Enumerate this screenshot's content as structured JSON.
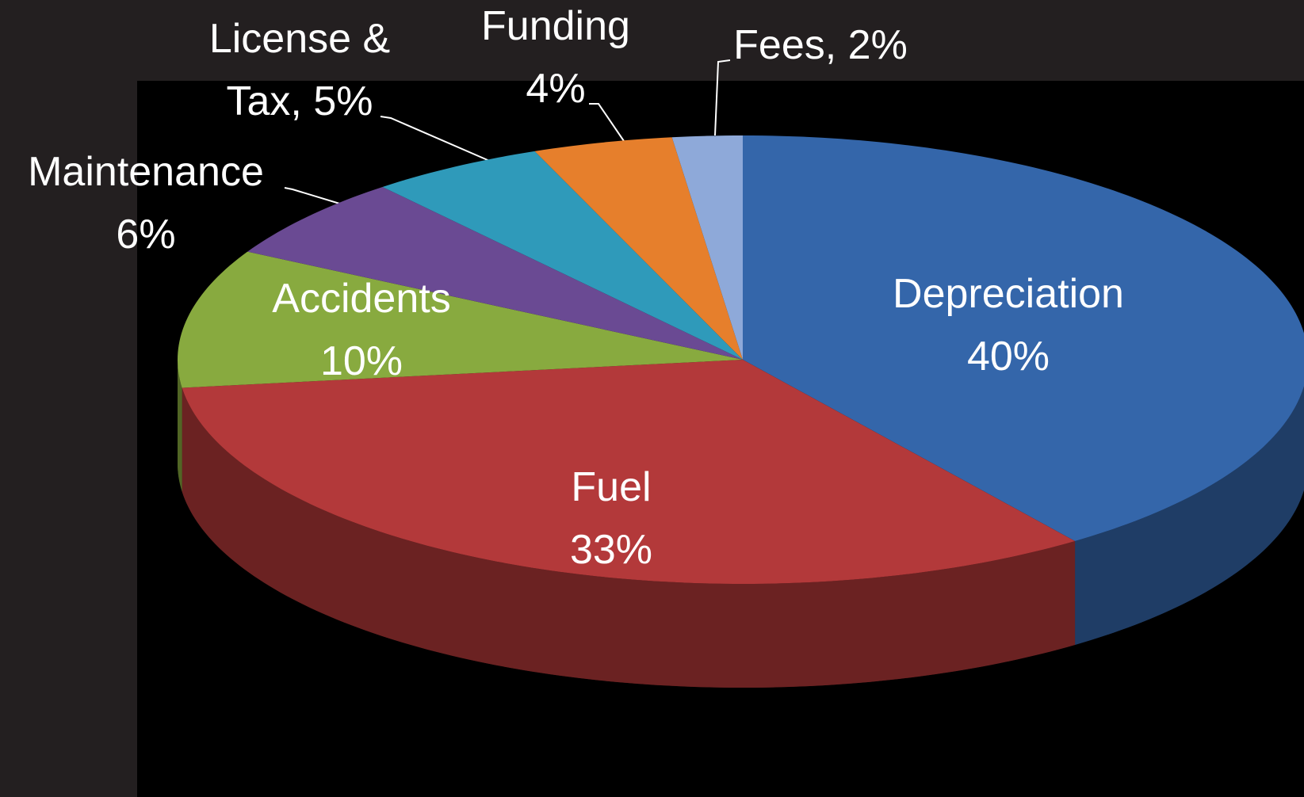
{
  "chart_data": {
    "type": "pie3d",
    "categories": [
      "Depreciation",
      "Fuel",
      "Accidents",
      "Maintenance",
      "License & Tax,",
      "Funding",
      "Fees,"
    ],
    "values": [
      40,
      33,
      10,
      6,
      5,
      4,
      2
    ],
    "value_labels": [
      "40%",
      "33%",
      "10%",
      "6%",
      "5%",
      "4%",
      "2%"
    ],
    "colors": [
      "#3466aa",
      "#b3393a",
      "#88aa3f",
      "#6a4a93",
      "#2f9aba",
      "#e67f2c",
      "#8ea9d9"
    ]
  }
}
